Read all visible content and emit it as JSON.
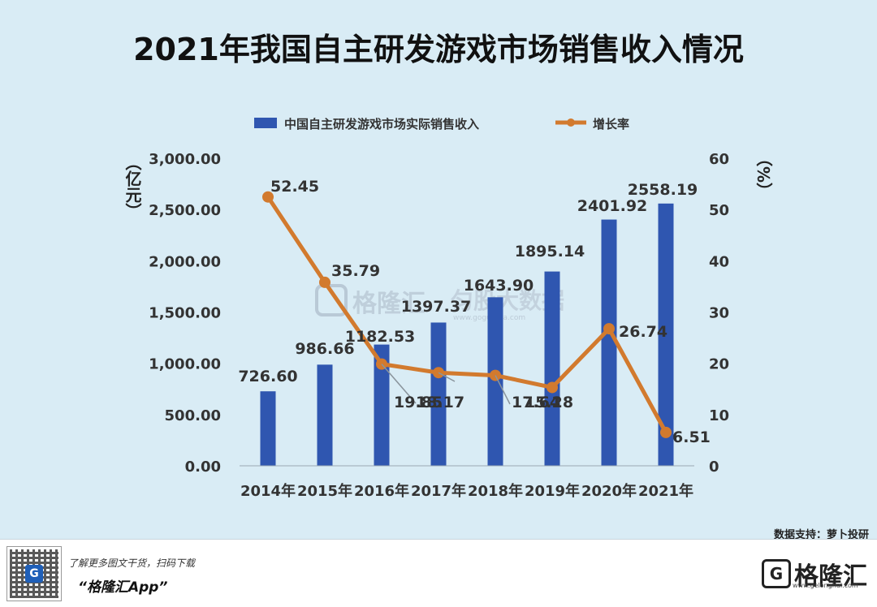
{
  "title": "2021年我国自主研发游戏市场销售收入情况",
  "source": "数据支持：萝卜投研",
  "footer": {
    "promo_text": "了解更多图文干货，扫码下载",
    "app_text": "“格隆汇App”",
    "brand_name": "格隆汇",
    "brand_url": "www.gelonghui.com",
    "qr_badge": "G"
  },
  "watermark": {
    "brand_name": "格隆汇",
    "product": "匀股大数据",
    "url": "www.gogudata.com"
  },
  "chart_data": {
    "type": "bar",
    "categories": [
      "2014年",
      "2015年",
      "2016年",
      "2017年",
      "2018年",
      "2019年",
      "2020年",
      "2021年"
    ],
    "series": [
      {
        "name": "中国自主研发游戏市场实际销售收入",
        "type": "bar",
        "axis": "left",
        "color": "#2f56b0",
        "values": [
          726.6,
          986.66,
          1182.53,
          1397.37,
          1643.9,
          1895.14,
          2401.92,
          2558.19
        ],
        "labels": [
          "726.60",
          "986.66",
          "1182.53",
          "1397.37",
          "1643.90",
          "1895.14",
          "2401.92",
          "2558.19"
        ]
      },
      {
        "name": "增长率",
        "type": "line",
        "axis": "right",
        "color": "#d27a2e",
        "values": [
          52.45,
          35.79,
          19.85,
          18.17,
          17.64,
          15.28,
          26.74,
          6.51
        ],
        "labels": [
          "52.45",
          "35.79",
          "19.85",
          "18.17",
          "17.64",
          "15.28",
          "26.74",
          "6.51"
        ]
      }
    ],
    "ylabel": "（亿元）",
    "y2label": "（%）",
    "ylim": [
      0,
      3000
    ],
    "y2lim": [
      0,
      60
    ],
    "yticks": [
      "0.00",
      "500.00",
      "1,000.00",
      "1,500.00",
      "2,000.00",
      "2,500.00",
      "3,000.00"
    ],
    "y2ticks": [
      "0",
      "10",
      "20",
      "30",
      "40",
      "50",
      "60"
    ],
    "legend": "top"
  }
}
